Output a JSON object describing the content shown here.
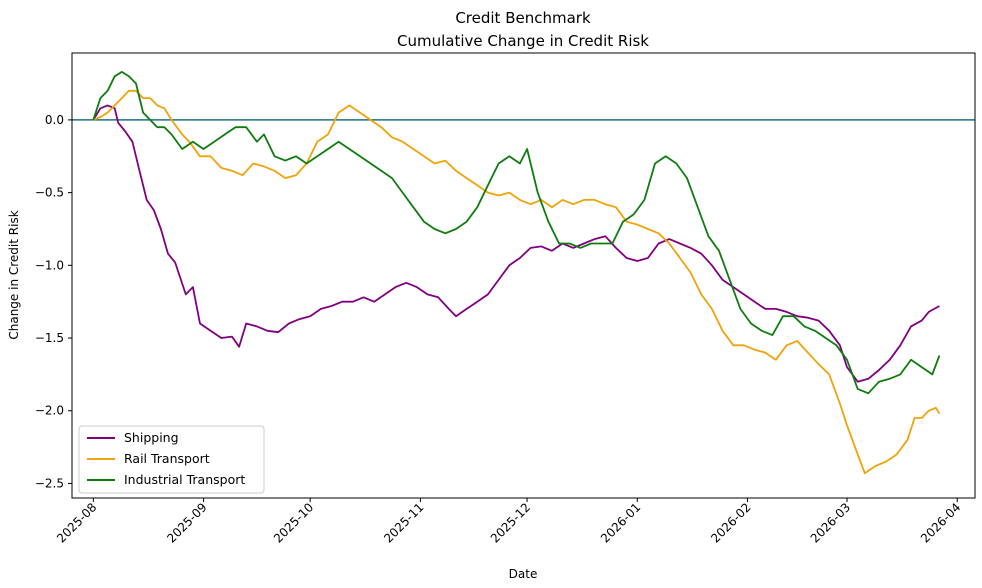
{
  "chart_data": {
    "type": "line",
    "title": "Credit Benchmark",
    "subtitle": "Cumulative Change in Credit Risk",
    "xlabel": "Date",
    "ylabel": "Change in Credit Risk",
    "xlim": [
      "2025-07-26",
      "2026-04-06"
    ],
    "ylim": [
      -2.6,
      0.46
    ],
    "x_ticks": [
      "2025-08",
      "2025-09",
      "2025-10",
      "2025-11",
      "2025-12",
      "2026-01",
      "2026-02",
      "2026-03",
      "2026-04"
    ],
    "y_ticks": [
      0.0,
      -0.5,
      -1.0,
      -1.5,
      -2.0,
      -2.5
    ],
    "y_tick_labels": [
      "0.0",
      "−0.5",
      "−1.0",
      "−1.5",
      "−2.0",
      "−2.5"
    ],
    "reference_line": {
      "y": 0.0,
      "color": "#1f6f8b"
    },
    "grid": false,
    "legend_position": "lower-left",
    "series": [
      {
        "name": "Shipping",
        "color": "#800080",
        "points": [
          [
            "2025-08-01",
            0.0
          ],
          [
            "2025-08-03",
            0.08
          ],
          [
            "2025-08-05",
            0.1
          ],
          [
            "2025-08-07",
            0.08
          ],
          [
            "2025-08-08",
            -0.02
          ],
          [
            "2025-08-10",
            -0.08
          ],
          [
            "2025-08-12",
            -0.15
          ],
          [
            "2025-08-14",
            -0.35
          ],
          [
            "2025-08-16",
            -0.55
          ],
          [
            "2025-08-18",
            -0.62
          ],
          [
            "2025-08-20",
            -0.75
          ],
          [
            "2025-08-22",
            -0.92
          ],
          [
            "2025-08-24",
            -0.98
          ],
          [
            "2025-08-27",
            -1.2
          ],
          [
            "2025-08-29",
            -1.15
          ],
          [
            "2025-08-31",
            -1.4
          ],
          [
            "2025-09-03",
            -1.45
          ],
          [
            "2025-09-06",
            -1.5
          ],
          [
            "2025-09-09",
            -1.49
          ],
          [
            "2025-09-11",
            -1.56
          ],
          [
            "2025-09-13",
            -1.4
          ],
          [
            "2025-09-16",
            -1.42
          ],
          [
            "2025-09-19",
            -1.45
          ],
          [
            "2025-09-22",
            -1.46
          ],
          [
            "2025-09-25",
            -1.4
          ],
          [
            "2025-09-28",
            -1.37
          ],
          [
            "2025-10-01",
            -1.35
          ],
          [
            "2025-10-04",
            -1.3
          ],
          [
            "2025-10-07",
            -1.28
          ],
          [
            "2025-10-10",
            -1.25
          ],
          [
            "2025-10-13",
            -1.25
          ],
          [
            "2025-10-16",
            -1.22
          ],
          [
            "2025-10-19",
            -1.25
          ],
          [
            "2025-10-22",
            -1.2
          ],
          [
            "2025-10-25",
            -1.15
          ],
          [
            "2025-10-28",
            -1.12
          ],
          [
            "2025-10-31",
            -1.15
          ],
          [
            "2025-11-03",
            -1.2
          ],
          [
            "2025-11-06",
            -1.22
          ],
          [
            "2025-11-09",
            -1.3
          ],
          [
            "2025-11-11",
            -1.35
          ],
          [
            "2025-11-14",
            -1.3
          ],
          [
            "2025-11-17",
            -1.25
          ],
          [
            "2025-11-20",
            -1.2
          ],
          [
            "2025-11-23",
            -1.1
          ],
          [
            "2025-11-26",
            -1.0
          ],
          [
            "2025-11-29",
            -0.95
          ],
          [
            "2025-12-02",
            -0.88
          ],
          [
            "2025-12-05",
            -0.87
          ],
          [
            "2025-12-08",
            -0.9
          ],
          [
            "2025-12-11",
            -0.85
          ],
          [
            "2025-12-14",
            -0.88
          ],
          [
            "2025-12-17",
            -0.85
          ],
          [
            "2025-12-20",
            -0.82
          ],
          [
            "2025-12-23",
            -0.8
          ],
          [
            "2025-12-26",
            -0.88
          ],
          [
            "2025-12-29",
            -0.95
          ],
          [
            "2026-01-01",
            -0.97
          ],
          [
            "2026-01-04",
            -0.95
          ],
          [
            "2026-01-07",
            -0.85
          ],
          [
            "2026-01-10",
            -0.82
          ],
          [
            "2026-01-13",
            -0.85
          ],
          [
            "2026-01-16",
            -0.88
          ],
          [
            "2026-01-19",
            -0.92
          ],
          [
            "2026-01-22",
            -1.0
          ],
          [
            "2026-01-25",
            -1.1
          ],
          [
            "2026-01-28",
            -1.15
          ],
          [
            "2026-01-31",
            -1.2
          ],
          [
            "2026-02-03",
            -1.25
          ],
          [
            "2026-02-06",
            -1.3
          ],
          [
            "2026-02-09",
            -1.3
          ],
          [
            "2026-02-12",
            -1.32
          ],
          [
            "2026-02-15",
            -1.35
          ],
          [
            "2026-02-18",
            -1.36
          ],
          [
            "2026-02-21",
            -1.38
          ],
          [
            "2026-02-24",
            -1.45
          ],
          [
            "2026-02-27",
            -1.55
          ],
          [
            "2026-03-01",
            -1.7
          ],
          [
            "2026-03-04",
            -1.8
          ],
          [
            "2026-03-07",
            -1.78
          ],
          [
            "2026-03-10",
            -1.72
          ],
          [
            "2026-03-13",
            -1.65
          ],
          [
            "2026-03-16",
            -1.55
          ],
          [
            "2026-03-19",
            -1.42
          ],
          [
            "2026-03-22",
            -1.38
          ],
          [
            "2026-03-24",
            -1.32
          ],
          [
            "2026-03-27",
            -1.28
          ]
        ]
      },
      {
        "name": "Rail Transport",
        "color": "#f0a30a",
        "points": [
          [
            "2025-08-01",
            0.0
          ],
          [
            "2025-08-03",
            0.02
          ],
          [
            "2025-08-05",
            0.05
          ],
          [
            "2025-08-07",
            0.1
          ],
          [
            "2025-08-09",
            0.15
          ],
          [
            "2025-08-11",
            0.2
          ],
          [
            "2025-08-13",
            0.2
          ],
          [
            "2025-08-15",
            0.15
          ],
          [
            "2025-08-17",
            0.15
          ],
          [
            "2025-08-19",
            0.1
          ],
          [
            "2025-08-21",
            0.08
          ],
          [
            "2025-08-23",
            0.0
          ],
          [
            "2025-08-26",
            -0.1
          ],
          [
            "2025-08-28",
            -0.15
          ],
          [
            "2025-08-31",
            -0.25
          ],
          [
            "2025-09-03",
            -0.25
          ],
          [
            "2025-09-06",
            -0.33
          ],
          [
            "2025-09-09",
            -0.35
          ],
          [
            "2025-09-12",
            -0.38
          ],
          [
            "2025-09-15",
            -0.3
          ],
          [
            "2025-09-18",
            -0.32
          ],
          [
            "2025-09-21",
            -0.35
          ],
          [
            "2025-09-24",
            -0.4
          ],
          [
            "2025-09-27",
            -0.38
          ],
          [
            "2025-09-30",
            -0.3
          ],
          [
            "2025-10-03",
            -0.15
          ],
          [
            "2025-10-06",
            -0.1
          ],
          [
            "2025-10-09",
            0.05
          ],
          [
            "2025-10-12",
            0.1
          ],
          [
            "2025-10-15",
            0.05
          ],
          [
            "2025-10-18",
            0.0
          ],
          [
            "2025-10-21",
            -0.05
          ],
          [
            "2025-10-24",
            -0.12
          ],
          [
            "2025-10-27",
            -0.15
          ],
          [
            "2025-10-30",
            -0.2
          ],
          [
            "2025-11-02",
            -0.25
          ],
          [
            "2025-11-05",
            -0.3
          ],
          [
            "2025-11-08",
            -0.28
          ],
          [
            "2025-11-11",
            -0.35
          ],
          [
            "2025-11-14",
            -0.4
          ],
          [
            "2025-11-17",
            -0.45
          ],
          [
            "2025-11-20",
            -0.5
          ],
          [
            "2025-11-23",
            -0.52
          ],
          [
            "2025-11-26",
            -0.5
          ],
          [
            "2025-11-29",
            -0.55
          ],
          [
            "2025-12-02",
            -0.58
          ],
          [
            "2025-12-05",
            -0.55
          ],
          [
            "2025-12-08",
            -0.6
          ],
          [
            "2025-12-11",
            -0.55
          ],
          [
            "2025-12-14",
            -0.58
          ],
          [
            "2025-12-17",
            -0.55
          ],
          [
            "2025-12-20",
            -0.55
          ],
          [
            "2025-12-23",
            -0.58
          ],
          [
            "2025-12-26",
            -0.6
          ],
          [
            "2025-12-29",
            -0.7
          ],
          [
            "2026-01-01",
            -0.72
          ],
          [
            "2026-01-04",
            -0.75
          ],
          [
            "2026-01-07",
            -0.78
          ],
          [
            "2026-01-10",
            -0.85
          ],
          [
            "2026-01-13",
            -0.95
          ],
          [
            "2026-01-16",
            -1.05
          ],
          [
            "2026-01-19",
            -1.2
          ],
          [
            "2026-01-22",
            -1.3
          ],
          [
            "2026-01-25",
            -1.45
          ],
          [
            "2026-01-28",
            -1.55
          ],
          [
            "2026-01-31",
            -1.55
          ],
          [
            "2026-02-03",
            -1.58
          ],
          [
            "2026-02-06",
            -1.6
          ],
          [
            "2026-02-09",
            -1.65
          ],
          [
            "2026-02-12",
            -1.55
          ],
          [
            "2026-02-15",
            -1.52
          ],
          [
            "2026-02-18",
            -1.6
          ],
          [
            "2026-02-21",
            -1.68
          ],
          [
            "2026-02-24",
            -1.75
          ],
          [
            "2026-02-27",
            -1.95
          ],
          [
            "2026-03-01",
            -2.1
          ],
          [
            "2026-03-04",
            -2.3
          ],
          [
            "2026-03-06",
            -2.43
          ],
          [
            "2026-03-09",
            -2.38
          ],
          [
            "2026-03-12",
            -2.35
          ],
          [
            "2026-03-15",
            -2.3
          ],
          [
            "2026-03-18",
            -2.2
          ],
          [
            "2026-03-20",
            -2.05
          ],
          [
            "2026-03-22",
            -2.05
          ],
          [
            "2026-03-24",
            -2.0
          ],
          [
            "2026-03-26",
            -1.98
          ],
          [
            "2026-03-27",
            -2.02
          ]
        ]
      },
      {
        "name": "Industrial Transport",
        "color": "#107c10",
        "points": [
          [
            "2025-08-01",
            0.0
          ],
          [
            "2025-08-03",
            0.15
          ],
          [
            "2025-08-05",
            0.2
          ],
          [
            "2025-08-07",
            0.3
          ],
          [
            "2025-08-09",
            0.33
          ],
          [
            "2025-08-11",
            0.3
          ],
          [
            "2025-08-13",
            0.25
          ],
          [
            "2025-08-15",
            0.05
          ],
          [
            "2025-08-17",
            0.0
          ],
          [
            "2025-08-19",
            -0.05
          ],
          [
            "2025-08-21",
            -0.05
          ],
          [
            "2025-08-23",
            -0.1
          ],
          [
            "2025-08-26",
            -0.2
          ],
          [
            "2025-08-29",
            -0.15
          ],
          [
            "2025-09-01",
            -0.2
          ],
          [
            "2025-09-04",
            -0.15
          ],
          [
            "2025-09-07",
            -0.1
          ],
          [
            "2025-09-10",
            -0.05
          ],
          [
            "2025-09-13",
            -0.05
          ],
          [
            "2025-09-16",
            -0.15
          ],
          [
            "2025-09-18",
            -0.1
          ],
          [
            "2025-09-21",
            -0.25
          ],
          [
            "2025-09-24",
            -0.28
          ],
          [
            "2025-09-27",
            -0.25
          ],
          [
            "2025-09-30",
            -0.3
          ],
          [
            "2025-10-03",
            -0.25
          ],
          [
            "2025-10-06",
            -0.2
          ],
          [
            "2025-10-09",
            -0.15
          ],
          [
            "2025-10-12",
            -0.2
          ],
          [
            "2025-10-15",
            -0.25
          ],
          [
            "2025-10-18",
            -0.3
          ],
          [
            "2025-10-21",
            -0.35
          ],
          [
            "2025-10-24",
            -0.4
          ],
          [
            "2025-10-27",
            -0.5
          ],
          [
            "2025-10-30",
            -0.6
          ],
          [
            "2025-11-02",
            -0.7
          ],
          [
            "2025-11-05",
            -0.75
          ],
          [
            "2025-11-08",
            -0.78
          ],
          [
            "2025-11-11",
            -0.75
          ],
          [
            "2025-11-14",
            -0.7
          ],
          [
            "2025-11-17",
            -0.6
          ],
          [
            "2025-11-20",
            -0.45
          ],
          [
            "2025-11-23",
            -0.3
          ],
          [
            "2025-11-26",
            -0.25
          ],
          [
            "2025-11-29",
            -0.3
          ],
          [
            "2025-12-01",
            -0.2
          ],
          [
            "2025-12-04",
            -0.5
          ],
          [
            "2025-12-07",
            -0.7
          ],
          [
            "2025-12-10",
            -0.85
          ],
          [
            "2025-12-13",
            -0.85
          ],
          [
            "2025-12-16",
            -0.88
          ],
          [
            "2025-12-19",
            -0.85
          ],
          [
            "2025-12-22",
            -0.85
          ],
          [
            "2025-12-25",
            -0.85
          ],
          [
            "2025-12-28",
            -0.7
          ],
          [
            "2025-12-31",
            -0.65
          ],
          [
            "2026-01-03",
            -0.55
          ],
          [
            "2026-01-06",
            -0.3
          ],
          [
            "2026-01-09",
            -0.25
          ],
          [
            "2026-01-12",
            -0.3
          ],
          [
            "2026-01-15",
            -0.4
          ],
          [
            "2026-01-18",
            -0.6
          ],
          [
            "2026-01-21",
            -0.8
          ],
          [
            "2026-01-24",
            -0.9
          ],
          [
            "2026-01-27",
            -1.1
          ],
          [
            "2026-01-30",
            -1.3
          ],
          [
            "2026-02-02",
            -1.4
          ],
          [
            "2026-02-05",
            -1.45
          ],
          [
            "2026-02-08",
            -1.48
          ],
          [
            "2026-02-11",
            -1.35
          ],
          [
            "2026-02-14",
            -1.35
          ],
          [
            "2026-02-17",
            -1.42
          ],
          [
            "2026-02-20",
            -1.45
          ],
          [
            "2026-02-23",
            -1.5
          ],
          [
            "2026-02-26",
            -1.55
          ],
          [
            "2026-03-01",
            -1.65
          ],
          [
            "2026-03-04",
            -1.85
          ],
          [
            "2026-03-07",
            -1.88
          ],
          [
            "2026-03-10",
            -1.8
          ],
          [
            "2026-03-13",
            -1.78
          ],
          [
            "2026-03-16",
            -1.75
          ],
          [
            "2026-03-19",
            -1.65
          ],
          [
            "2026-03-22",
            -1.7
          ],
          [
            "2026-03-25",
            -1.75
          ],
          [
            "2026-03-27",
            -1.62
          ]
        ]
      }
    ]
  }
}
